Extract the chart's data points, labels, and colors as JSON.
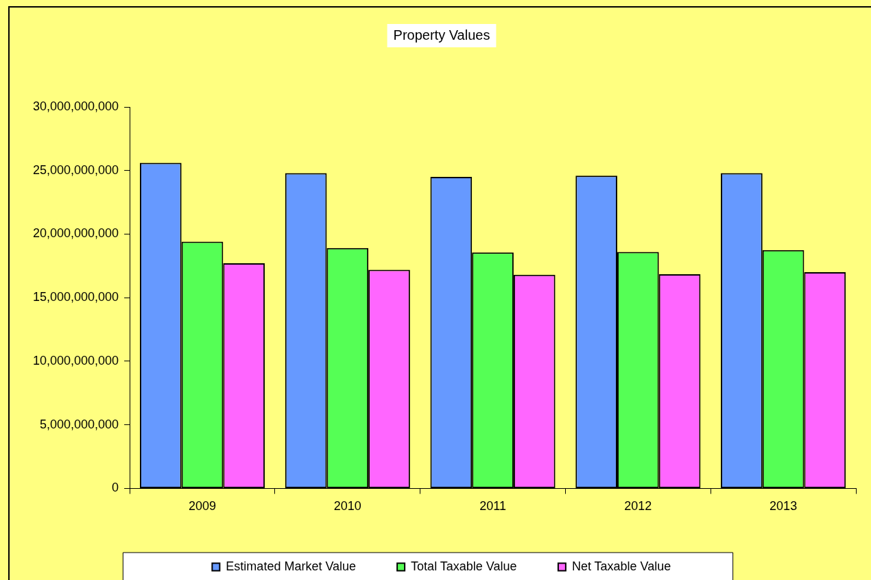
{
  "chart_data": {
    "type": "bar",
    "title": "Property Values",
    "categories": [
      "2009",
      "2010",
      "2011",
      "2012",
      "2013"
    ],
    "series": [
      {
        "name": "Estimated Market Value",
        "color": "#6699ff",
        "values": [
          25600000000,
          24800000000,
          24500000000,
          24600000000,
          24800000000
        ]
      },
      {
        "name": "Total Taxable Value",
        "color": "#55ff55",
        "values": [
          19400000000,
          18900000000,
          18550000000,
          18600000000,
          18750000000
        ]
      },
      {
        "name": "Net Taxable Value",
        "color": "#ff66ff",
        "values": [
          17700000000,
          17200000000,
          16800000000,
          16850000000,
          17000000000
        ]
      }
    ],
    "ylim": [
      0,
      30000000000
    ],
    "yticks": [
      {
        "value": 0,
        "label": "0"
      },
      {
        "value": 5000000000,
        "label": "5,000,000,000"
      },
      {
        "value": 10000000000,
        "label": "10,000,000,000"
      },
      {
        "value": 15000000000,
        "label": "15,000,000,000"
      },
      {
        "value": 20000000000,
        "label": "20,000,000,000"
      },
      {
        "value": 25000000000,
        "label": "25,000,000,000"
      },
      {
        "value": 30000000000,
        "label": "30,000,000,000"
      }
    ],
    "grid": false,
    "legend": "bottom"
  }
}
